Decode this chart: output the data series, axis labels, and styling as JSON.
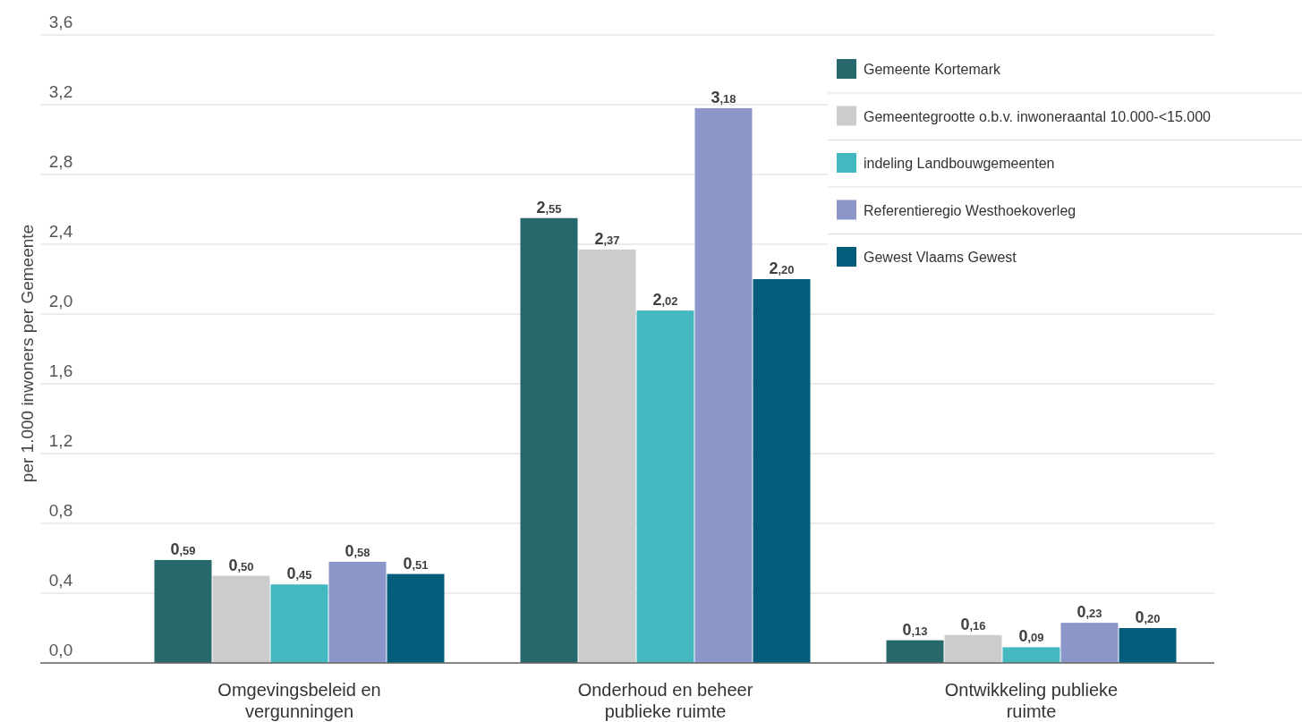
{
  "chart_data": {
    "type": "bar",
    "ylabel": "per 1.000 inwoners per Gemeente",
    "categories": [
      "Omgevingsbeleid en vergunningen",
      "Onderhoud en beheer publieke ruimte",
      "Ontwikkeling publieke ruimte"
    ],
    "series": [
      {
        "name": "Gemeente Kortemark",
        "color": "#26686b",
        "values": [
          0.59,
          2.55,
          0.13
        ],
        "value_labels": [
          "0,59",
          "2,55",
          "0,13"
        ]
      },
      {
        "name": "Gemeentegrootte o.b.v. inwoneraantal 10.000-<15.000",
        "color": "#cccccc",
        "values": [
          0.5,
          2.37,
          0.16
        ],
        "value_labels": [
          "0,50",
          "2,37",
          "0,16"
        ]
      },
      {
        "name": "indeling Landbouwgemeenten",
        "color": "#43b8c0",
        "values": [
          0.45,
          2.02,
          0.09
        ],
        "value_labels": [
          "0,45",
          "2,02",
          "0,09"
        ]
      },
      {
        "name": "Referentieregio Westhoekoverleg",
        "color": "#8c96c9",
        "values": [
          0.58,
          3.18,
          0.23
        ],
        "value_labels": [
          "0,58",
          "3,18",
          "0,23"
        ]
      },
      {
        "name": "Gewest Vlaams Gewest",
        "color": "#045e7b",
        "values": [
          0.51,
          2.2,
          0.2
        ],
        "value_labels": [
          "0,51",
          "2,20",
          "0,20"
        ]
      }
    ],
    "ylim": [
      0,
      3.6
    ],
    "yticks": [
      {
        "value": 0,
        "label": "0,0"
      },
      {
        "value": 0.4,
        "label": "0,4"
      },
      {
        "value": 0.8,
        "label": "0,8"
      },
      {
        "value": 1.2,
        "label": "1,2"
      },
      {
        "value": 1.6,
        "label": "1,6"
      },
      {
        "value": 2.0,
        "label": "2,0"
      },
      {
        "value": 2.4,
        "label": "2,4"
      },
      {
        "value": 2.8,
        "label": "2,8"
      },
      {
        "value": 3.2,
        "label": "3,2"
      },
      {
        "value": 3.6,
        "label": "3,6"
      }
    ],
    "grid": "y",
    "legend": "top right"
  }
}
